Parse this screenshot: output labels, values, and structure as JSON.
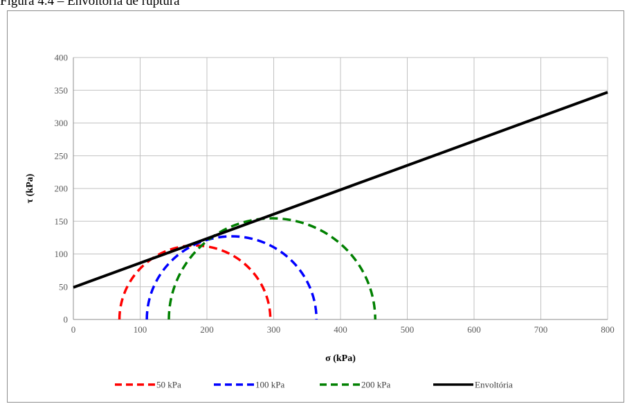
{
  "page": {
    "caption_fragment": "Figura 4.4 – Envoltória de ruptura"
  },
  "chart_data": {
    "type": "line",
    "xlabel": "σ (kPa)",
    "ylabel": "τ (kPa)",
    "xlim": [
      0,
      800
    ],
    "ylim": [
      0,
      400
    ],
    "xticks": [
      0,
      100,
      200,
      300,
      400,
      500,
      600,
      700,
      800
    ],
    "yticks": [
      0,
      50,
      100,
      150,
      200,
      250,
      300,
      350,
      400
    ],
    "x_tick_labels": [
      "0",
      "100",
      "200",
      "300",
      "400",
      "500",
      "600",
      "700",
      "800"
    ],
    "y_tick_labels": [
      "0",
      "50",
      "100",
      "150",
      "200",
      "250",
      "300",
      "350",
      "400"
    ],
    "grid": true,
    "legend_position": "bottom",
    "series": [
      {
        "name": "50 kPa",
        "kind": "mohr-circle",
        "sigma3": 69,
        "sigma1": 295,
        "color": "#ff0000",
        "dashed": true
      },
      {
        "name": "100 kPa",
        "kind": "mohr-circle",
        "sigma3": 110,
        "sigma1": 364,
        "color": "#0000ff",
        "dashed": true
      },
      {
        "name": "200 kPa",
        "kind": "mohr-circle",
        "sigma3": 143,
        "sigma1": 452,
        "color": "#008000",
        "dashed": true
      },
      {
        "name": "Envoltória",
        "kind": "line",
        "x": [
          0,
          800
        ],
        "y": [
          49,
          347
        ],
        "color": "#000000",
        "dashed": false
      }
    ]
  }
}
